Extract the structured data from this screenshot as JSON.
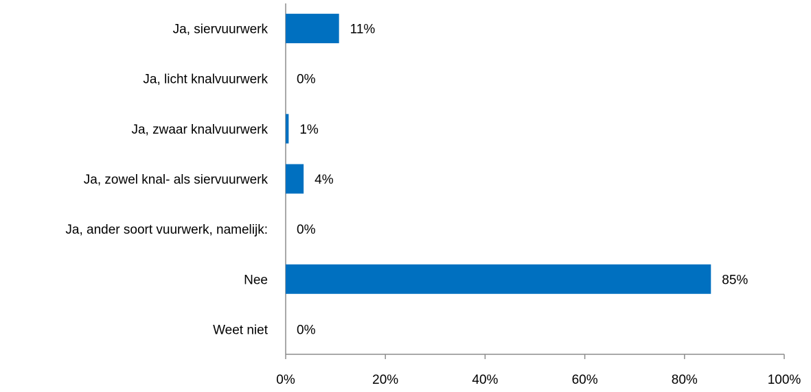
{
  "chart_data": {
    "type": "bar",
    "orientation": "horizontal",
    "categories": [
      "Ja, siervuurwerk",
      "Ja, licht knalvuurwerk",
      "Ja, zwaar knalvuurwerk",
      "Ja, zowel knal- als siervuurwerk",
      "Ja, ander soort vuurwerk, namelijk:",
      "Nee",
      "Weet niet"
    ],
    "values": [
      10.7,
      0,
      0.6,
      3.6,
      0,
      85.3,
      0
    ],
    "value_labels": [
      "11%",
      "0%",
      "1%",
      "4%",
      "0%",
      "85%",
      "0%"
    ],
    "color": "#0070c0",
    "xlim": [
      0,
      100
    ],
    "xticks": [
      {
        "value": 0,
        "label": "0%"
      },
      {
        "value": 20,
        "label": "20%"
      },
      {
        "value": 40,
        "label": "40%"
      },
      {
        "value": 60,
        "label": "60%"
      },
      {
        "value": 80,
        "label": "80%"
      },
      {
        "value": 100,
        "label": "100%"
      }
    ],
    "grid": false
  }
}
